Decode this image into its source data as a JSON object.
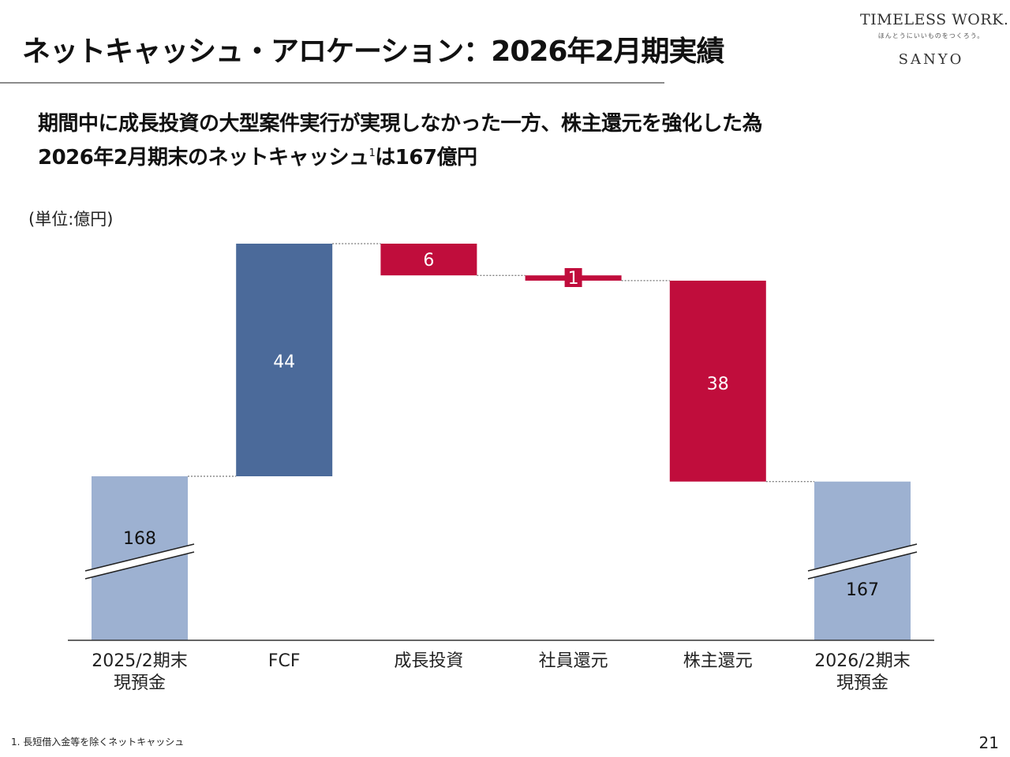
{
  "title": "ネットキャッシュ・アロケーション：2026年2月期実績",
  "logo": {
    "main": "TIMELESS WORK.",
    "tagline": "ほんとうにいいものをつくろう。",
    "brand": "SANYO"
  },
  "headline": {
    "line1": "期間中に成長投資の大型案件実行が実現しなかった一方、株主還元を強化した為",
    "line2_pre": "2026年2月期末のネットキャッシュ",
    "line2_sup": "1",
    "line2_post": "は167億円"
  },
  "unit_label": "(単位:億円)",
  "footnote": "1. 長短借入金等を除くネットキャッシュ",
  "page_number": "21",
  "colors": {
    "start_end": "#9db1d1",
    "increase": "#4b6a9a",
    "decrease": "#c00d3c",
    "axis": "#333333"
  },
  "chart_data": {
    "type": "bar",
    "subtype": "waterfall",
    "categories": [
      "2025/2期末\n現預金",
      "FCF",
      "成長投資",
      "社員還元",
      "株主還元",
      "2026/2期末\n現預金"
    ],
    "values": [
      168,
      44,
      -6,
      -1,
      -38,
      167
    ],
    "labels": [
      "168",
      "44",
      "6",
      "1",
      "38",
      "167"
    ],
    "kinds": [
      "total",
      "increase",
      "decrease",
      "decrease",
      "decrease",
      "total"
    ],
    "axis_break": true,
    "ylabel": "億円",
    "title": ""
  }
}
